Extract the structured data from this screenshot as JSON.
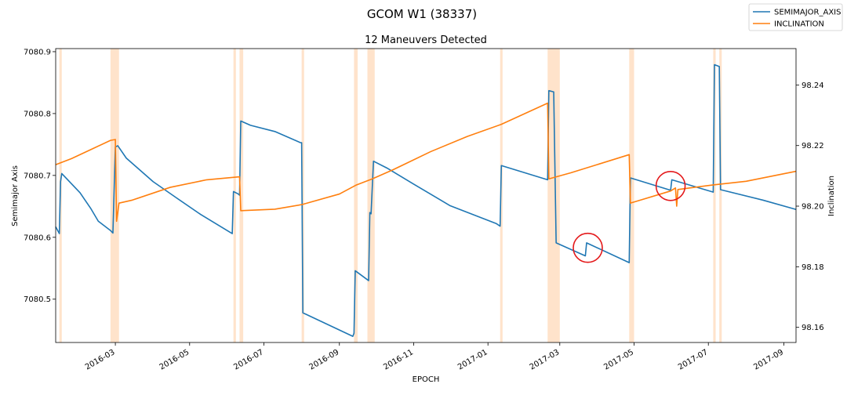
{
  "chart_data": {
    "type": "line",
    "suptitle": "GCOM W1 (38337)",
    "title": "12 Maneuvers Detected",
    "xlabel": "EPOCH",
    "ylabel_left": "Semimajor Axis",
    "ylabel_right": "Inclination",
    "xlim": [
      "2016-01-12",
      "2017-09-11"
    ],
    "ylim_left": [
      7080.43,
      7080.905
    ],
    "ylim_right": [
      98.155,
      98.252
    ],
    "x_ticks": [
      {
        "date": "2016-03-01",
        "label": "2016-03"
      },
      {
        "date": "2016-05-01",
        "label": "2016-05"
      },
      {
        "date": "2016-07-01",
        "label": "2016-07"
      },
      {
        "date": "2016-09-01",
        "label": "2016-09"
      },
      {
        "date": "2016-11-01",
        "label": "2016-11"
      },
      {
        "date": "2017-01-01",
        "label": "2017-01"
      },
      {
        "date": "2017-03-01",
        "label": "2017-03"
      },
      {
        "date": "2017-05-01",
        "label": "2017-05"
      },
      {
        "date": "2017-07-01",
        "label": "2017-07"
      },
      {
        "date": "2017-09-01",
        "label": "2017-09"
      }
    ],
    "y_ticks_left": [
      {
        "value": 7080.5,
        "label": "7080.5"
      },
      {
        "value": 7080.6,
        "label": "7080.6"
      },
      {
        "value": 7080.7,
        "label": "7080.7"
      },
      {
        "value": 7080.8,
        "label": "7080.8"
      },
      {
        "value": 7080.9,
        "label": "7080.9"
      }
    ],
    "y_ticks_right": [
      {
        "value": 98.16,
        "label": "98.16"
      },
      {
        "value": 98.18,
        "label": "98.18"
      },
      {
        "value": 98.2,
        "label": "98.20"
      },
      {
        "value": 98.22,
        "label": "98.22"
      },
      {
        "value": 98.24,
        "label": "98.24"
      }
    ],
    "legend": {
      "placement": "top-right",
      "entries": [
        "SEMIMAJOR_AXIS",
        "INCLINATION"
      ]
    },
    "colors": {
      "semimajor": "#1f77b4",
      "inclination": "#ff7f0e",
      "maneuver_band": "#ffe1c8",
      "circle": "#e41a1c"
    },
    "maneuver_windows": [
      [
        "2016-01-15",
        "2016-01-17"
      ],
      [
        "2016-02-26",
        "2016-03-04"
      ],
      [
        "2016-06-06",
        "2016-06-08"
      ],
      [
        "2016-06-11",
        "2016-06-14"
      ],
      [
        "2016-08-01",
        "2016-08-03"
      ],
      [
        "2016-09-13",
        "2016-09-16"
      ],
      [
        "2016-09-24",
        "2016-09-30"
      ],
      [
        "2017-01-11",
        "2017-01-13"
      ],
      [
        "2017-02-19",
        "2017-03-01"
      ],
      [
        "2017-04-27",
        "2017-05-01"
      ],
      [
        "2017-07-05",
        "2017-07-07"
      ],
      [
        "2017-07-10",
        "2017-07-12"
      ]
    ],
    "highlight_circles": [
      {
        "date": "2017-03-24",
        "value": 7080.583
      },
      {
        "date": "2017-05-31",
        "value": 7080.683
      }
    ],
    "series": [
      {
        "name": "SEMIMAJOR_AXIS",
        "axis": "left",
        "points": [
          [
            "2016-01-12",
            7080.617
          ],
          [
            "2016-01-15",
            7080.606
          ],
          [
            "2016-01-16",
            7080.69
          ],
          [
            "2016-01-17",
            7080.703
          ],
          [
            "2016-02-01",
            7080.672
          ],
          [
            "2016-02-10",
            7080.646
          ],
          [
            "2016-02-16",
            7080.626
          ],
          [
            "2016-02-26",
            7080.611
          ],
          [
            "2016-02-28",
            7080.607
          ],
          [
            "2016-03-01",
            7080.746
          ],
          [
            "2016-03-03",
            7080.748
          ],
          [
            "2016-03-10",
            7080.728
          ],
          [
            "2016-04-01",
            7080.69
          ],
          [
            "2016-04-20",
            7080.664
          ],
          [
            "2016-05-10",
            7080.637
          ],
          [
            "2016-06-05",
            7080.606
          ],
          [
            "2016-06-06",
            7080.674
          ],
          [
            "2016-06-10",
            7080.67
          ],
          [
            "2016-06-11",
            7080.668
          ],
          [
            "2016-06-12",
            7080.788
          ],
          [
            "2016-06-20",
            7080.781
          ],
          [
            "2016-07-10",
            7080.771
          ],
          [
            "2016-07-31",
            7080.753
          ],
          [
            "2016-08-01",
            7080.753
          ],
          [
            "2016-08-02",
            7080.478
          ],
          [
            "2016-09-12",
            7080.44
          ],
          [
            "2016-09-13",
            7080.445
          ],
          [
            "2016-09-14",
            7080.546
          ],
          [
            "2016-09-25",
            7080.53
          ],
          [
            "2016-09-26",
            7080.64
          ],
          [
            "2016-09-27",
            7080.638
          ],
          [
            "2016-09-29",
            7080.723
          ],
          [
            "2016-10-10",
            7080.712
          ],
          [
            "2016-11-01",
            7080.686
          ],
          [
            "2016-12-01",
            7080.651
          ],
          [
            "2017-01-08",
            7080.622
          ],
          [
            "2017-01-11",
            7080.618
          ],
          [
            "2017-01-12",
            7080.716
          ],
          [
            "2017-02-19",
            7080.693
          ],
          [
            "2017-02-20",
            7080.837
          ],
          [
            "2017-02-24",
            7080.835
          ],
          [
            "2017-02-26",
            7080.591
          ],
          [
            "2017-03-22",
            7080.57
          ],
          [
            "2017-03-23",
            7080.591
          ],
          [
            "2017-04-27",
            7080.559
          ],
          [
            "2017-04-28",
            7080.696
          ],
          [
            "2017-05-31",
            7080.676
          ],
          [
            "2017-06-01",
            7080.693
          ],
          [
            "2017-07-05",
            7080.673
          ],
          [
            "2017-07-06",
            7080.879
          ],
          [
            "2017-07-10",
            7080.876
          ],
          [
            "2017-07-11",
            7080.677
          ],
          [
            "2017-08-15",
            7080.66
          ],
          [
            "2017-09-11",
            7080.645
          ]
        ]
      },
      {
        "name": "INCLINATION",
        "axis": "right",
        "points": [
          [
            "2016-01-12",
            98.2137
          ],
          [
            "2016-01-25",
            98.2157
          ],
          [
            "2016-02-10",
            98.2187
          ],
          [
            "2016-02-26",
            98.2217
          ],
          [
            "2016-03-01",
            98.222
          ],
          [
            "2016-03-02",
            98.195
          ],
          [
            "2016-03-04",
            98.201
          ],
          [
            "2016-03-15",
            98.202
          ],
          [
            "2016-04-15",
            98.2062
          ],
          [
            "2016-05-15",
            98.2087
          ],
          [
            "2016-06-11",
            98.2097
          ],
          [
            "2016-06-12",
            98.1985
          ],
          [
            "2016-07-10",
            98.199
          ],
          [
            "2016-08-01",
            98.2005
          ],
          [
            "2016-09-01",
            98.204
          ],
          [
            "2016-09-15",
            98.207
          ],
          [
            "2016-09-28",
            98.209
          ],
          [
            "2016-10-15",
            98.212
          ],
          [
            "2016-11-15",
            98.218
          ],
          [
            "2016-12-15",
            98.223
          ],
          [
            "2017-01-12",
            98.227
          ],
          [
            "2017-02-19",
            98.234
          ],
          [
            "2017-02-20",
            98.209
          ],
          [
            "2017-03-10",
            98.211
          ],
          [
            "2017-04-27",
            98.217
          ],
          [
            "2017-04-28",
            98.201
          ],
          [
            "2017-05-31",
            98.205
          ],
          [
            "2017-06-04",
            98.206
          ],
          [
            "2017-06-05",
            98.2
          ],
          [
            "2017-06-06",
            98.2055
          ],
          [
            "2017-07-05",
            98.207
          ],
          [
            "2017-08-01",
            98.2082
          ],
          [
            "2017-09-11",
            98.2115
          ]
        ]
      }
    ]
  }
}
